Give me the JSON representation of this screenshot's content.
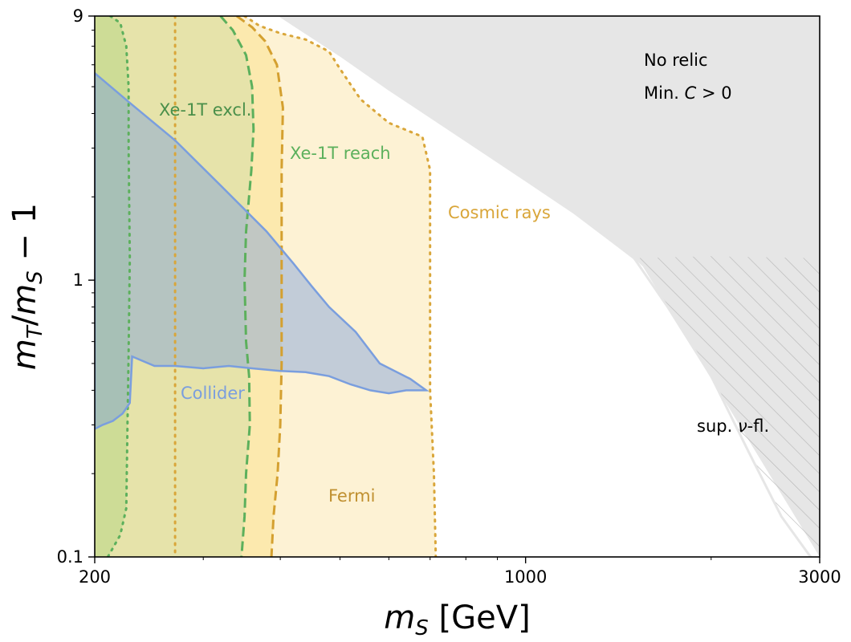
{
  "chart_data": {
    "type": "area",
    "xlabel": "m_S [GeV]",
    "ylabel": "m_T/m_S − 1",
    "xscale": "log",
    "yscale": "log",
    "xlim": [
      200,
      3000
    ],
    "ylim": [
      0.1,
      9
    ],
    "x_ticks": [
      200,
      1000,
      3000
    ],
    "x_tick_labels": [
      "200",
      "1000",
      "3000"
    ],
    "y_ticks": [
      0.1,
      1,
      9
    ],
    "y_tick_labels": [
      "0.1",
      "1",
      "9"
    ],
    "grid": false,
    "colors": {
      "no_relic": "#e6e6e6",
      "hatch": "#cccccc",
      "xe_excl": "#5cb05c",
      "xe_reach": "#5cb05c",
      "fermi": "#d4a030",
      "cosmic": "#d9a63a",
      "collider": "#7a9ede"
    },
    "regions": [
      {
        "name": "No relic, Min. C > 0",
        "label_lines": [
          "No relic",
          "Min. C > 0"
        ],
        "fill": "#e6e6e6",
        "boundary": [
          [
            400,
            9
          ],
          [
            500,
            6.5
          ],
          [
            600,
            4.9
          ],
          [
            700,
            3.9
          ],
          [
            800,
            3.2
          ],
          [
            1000,
            2.3
          ],
          [
            1200,
            1.75
          ],
          [
            1400,
            1.35
          ],
          [
            1500,
            1.2
          ]
        ]
      },
      {
        "name": "sup. ν-fl.",
        "label": "sup. ν-fl.",
        "style": "hatched",
        "boundary": [
          [
            1500,
            1.2
          ],
          [
            1700,
            0.8
          ],
          [
            2000,
            0.45
          ],
          [
            2300,
            0.24
          ],
          [
            2600,
            0.14
          ],
          [
            2900,
            0.1
          ]
        ]
      },
      {
        "name": "Xe-1T excl.",
        "label": "Xe-1T excl.",
        "line": "dotted",
        "boundary": [
          [
            212,
            9
          ],
          [
            220,
            8.5
          ],
          [
            225,
            7
          ],
          [
            227,
            5
          ],
          [
            227,
            3
          ],
          [
            228,
            1.2
          ],
          [
            227,
            0.55
          ],
          [
            226,
            0.3
          ],
          [
            225,
            0.15
          ],
          [
            220,
            0.12
          ],
          [
            210,
            0.1
          ]
        ]
      },
      {
        "name": "Xe-1T reach",
        "label": "Xe-1T reach",
        "line": "dashed",
        "boundary": [
          [
            320,
            9
          ],
          [
            335,
            8
          ],
          [
            352,
            6.5
          ],
          [
            360,
            5
          ],
          [
            362,
            3.5
          ],
          [
            359,
            2.5
          ],
          [
            352,
            1.5
          ],
          [
            350,
            1.0
          ],
          [
            352,
            0.6
          ],
          [
            356,
            0.45
          ],
          [
            357,
            0.3
          ],
          [
            352,
            0.2
          ],
          [
            350,
            0.14
          ],
          [
            346,
            0.1
          ]
        ]
      },
      {
        "name": "Fermi",
        "label": "Fermi",
        "line": "dashed",
        "boundary": [
          [
            340,
            9
          ],
          [
            360,
            8.2
          ],
          [
            378,
            7.3
          ],
          [
            395,
            6
          ],
          [
            404,
            4.2
          ],
          [
            402,
            2.5
          ],
          [
            402,
            1.2
          ],
          [
            402,
            0.5
          ],
          [
            400,
            0.3
          ],
          [
            396,
            0.2
          ],
          [
            390,
            0.14
          ],
          [
            387,
            0.1
          ]
        ]
      },
      {
        "name": "Cosmic rays",
        "label": "Cosmic rays",
        "line": "dotted",
        "boundary": [
          [
            350,
            9
          ],
          [
            370,
            8.3
          ],
          [
            400,
            7.8
          ],
          [
            440,
            7.4
          ],
          [
            480,
            6.7
          ],
          [
            500,
            5.8
          ],
          [
            540,
            4.5
          ],
          [
            600,
            3.7
          ],
          [
            680,
            3.3
          ],
          [
            700,
            2.5
          ],
          [
            700,
            1.0
          ],
          [
            700,
            0.4
          ],
          [
            710,
            0.2
          ],
          [
            715,
            0.1
          ]
        ]
      },
      {
        "name": "Fermi (inner dotted)",
        "line": "dotted",
        "boundary": [
          [
            270,
            9
          ],
          [
            270,
            3
          ],
          [
            270,
            1
          ],
          [
            270,
            0.3
          ],
          [
            270,
            0.1
          ]
        ]
      },
      {
        "name": "Collider",
        "label": "Collider",
        "line": "solid",
        "boundary": [
          [
            200,
            5.6
          ],
          [
            230,
            4.3
          ],
          [
            270,
            3.2
          ],
          [
            320,
            2.2
          ],
          [
            380,
            1.5
          ],
          [
            420,
            1.15
          ],
          [
            450,
            0.95
          ],
          [
            480,
            0.8
          ],
          [
            530,
            0.65
          ],
          [
            580,
            0.5
          ],
          [
            650,
            0.44
          ],
          [
            690,
            0.4
          ],
          [
            640,
            0.4
          ],
          [
            600,
            0.39
          ],
          [
            560,
            0.4
          ],
          [
            520,
            0.42
          ],
          [
            480,
            0.45
          ],
          [
            440,
            0.465
          ],
          [
            400,
            0.47
          ],
          [
            360,
            0.48
          ],
          [
            330,
            0.49
          ],
          [
            300,
            0.48
          ],
          [
            270,
            0.49
          ],
          [
            250,
            0.49
          ],
          [
            230,
            0.53
          ],
          [
            228,
            0.36
          ],
          [
            222,
            0.33
          ],
          [
            214,
            0.31
          ],
          [
            206,
            0.3
          ],
          [
            200,
            0.29
          ]
        ]
      }
    ]
  }
}
